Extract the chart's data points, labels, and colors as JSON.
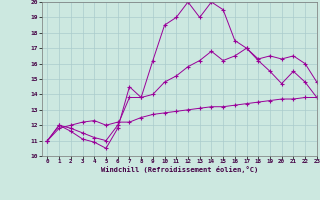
{
  "xlabel": "Windchill (Refroidissement éolien,°C)",
  "bg_color": "#cce8e0",
  "line_color": "#990099",
  "grid_color": "#aacccc",
  "xlim": [
    -0.5,
    23
  ],
  "ylim": [
    10,
    20
  ],
  "xticks": [
    0,
    1,
    2,
    3,
    4,
    5,
    6,
    7,
    8,
    9,
    10,
    11,
    12,
    13,
    14,
    15,
    16,
    17,
    18,
    19,
    20,
    21,
    22,
    23
  ],
  "yticks": [
    10,
    11,
    12,
    13,
    14,
    15,
    16,
    17,
    18,
    19,
    20
  ],
  "line1_x": [
    0,
    1,
    2,
    3,
    4,
    5,
    6,
    7,
    8,
    9,
    10,
    11,
    12,
    13,
    14,
    15,
    16,
    17,
    18,
    19,
    20,
    21,
    22,
    23
  ],
  "line1_y": [
    11.0,
    12.0,
    11.6,
    11.1,
    10.9,
    10.5,
    11.8,
    14.5,
    13.8,
    16.2,
    18.5,
    19.0,
    20.0,
    19.0,
    20.0,
    19.5,
    17.5,
    17.0,
    16.2,
    15.5,
    14.7,
    15.5,
    14.8,
    13.8
  ],
  "line2_x": [
    0,
    1,
    2,
    3,
    4,
    5,
    6,
    7,
    8,
    9,
    10,
    11,
    12,
    13,
    14,
    15,
    16,
    17,
    18,
    19,
    20,
    21,
    22,
    23
  ],
  "line2_y": [
    11.0,
    12.0,
    11.8,
    11.5,
    11.2,
    11.0,
    12.0,
    13.8,
    13.8,
    14.0,
    14.8,
    15.2,
    15.8,
    16.2,
    16.8,
    16.2,
    16.5,
    17.0,
    16.3,
    16.5,
    16.3,
    16.5,
    16.0,
    14.8
  ],
  "line3_x": [
    0,
    1,
    2,
    3,
    4,
    5,
    6,
    7,
    8,
    9,
    10,
    11,
    12,
    13,
    14,
    15,
    16,
    17,
    18,
    19,
    20,
    21,
    22,
    23
  ],
  "line3_y": [
    11.0,
    11.8,
    12.0,
    12.2,
    12.3,
    12.0,
    12.2,
    12.2,
    12.5,
    12.7,
    12.8,
    12.9,
    13.0,
    13.1,
    13.2,
    13.2,
    13.3,
    13.4,
    13.5,
    13.6,
    13.7,
    13.7,
    13.8,
    13.8
  ]
}
